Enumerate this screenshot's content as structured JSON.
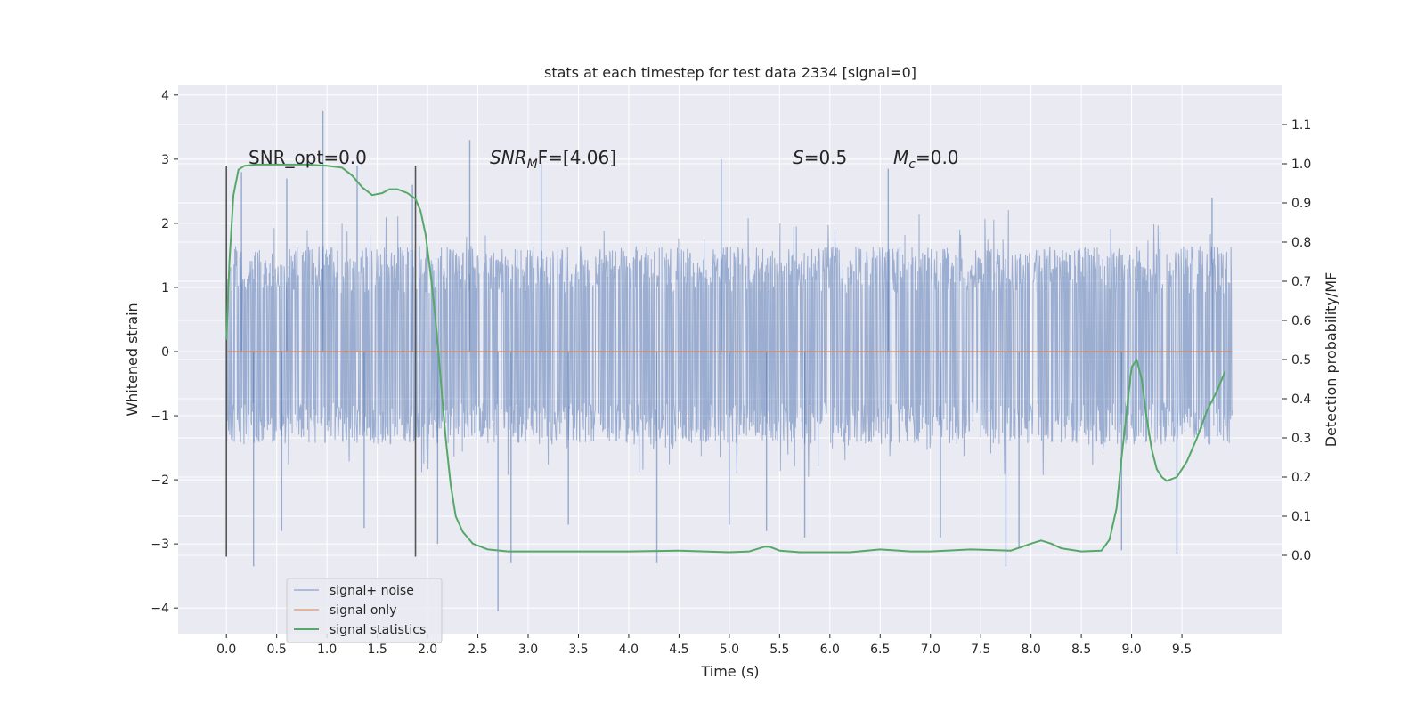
{
  "chart_data": {
    "type": "line",
    "title": "stats at each timestep for test data 2334 [signal=0]",
    "xlabel": "Time (s)",
    "ylabel": "Whitened strain",
    "y2label": "Detection probability/MF",
    "xlim": [
      -0.48,
      10.5
    ],
    "ylim": [
      -4.4,
      4.15
    ],
    "y2lim": [
      -0.2,
      1.2
    ],
    "xticks": [
      0.0,
      0.5,
      1.0,
      1.5,
      2.0,
      2.5,
      3.0,
      3.5,
      4.0,
      4.5,
      5.0,
      5.5,
      6.0,
      6.5,
      7.0,
      7.5,
      8.0,
      8.5,
      9.0,
      9.5
    ],
    "xtick_labels": [
      "0.0",
      "0.5",
      "1.0",
      "1.5",
      "2.0",
      "2.5",
      "3.0",
      "3.5",
      "4.0",
      "4.5",
      "5.0",
      "5.5",
      "6.0",
      "6.5",
      "7.0",
      "7.5",
      "8.0",
      "8.5",
      "9.0",
      "9.5"
    ],
    "yticks": [
      -4,
      -3,
      -2,
      -1,
      0,
      1,
      2,
      3,
      4
    ],
    "ytick_labels": [
      "−4",
      "−3",
      "−2",
      "−1",
      "0",
      "1",
      "2",
      "3",
      "4"
    ],
    "y2ticks": [
      0.0,
      0.1,
      0.2,
      0.3,
      0.4,
      0.5,
      0.6,
      0.7,
      0.8,
      0.9,
      1.0,
      1.1
    ],
    "y2tick_labels": [
      "0.0",
      "0.1",
      "0.2",
      "0.3",
      "0.4",
      "0.5",
      "0.6",
      "0.7",
      "0.8",
      "0.9",
      "1.0",
      "1.1"
    ],
    "grid": true,
    "legend_position": "lower-left",
    "series": [
      {
        "name": "signal+ noise",
        "color": "#4c72b0",
        "axis": "left",
        "style": "dense noise trace",
        "x_range": [
          0.0,
          10.0
        ],
        "typical_envelope": [
          -1.45,
          1.65
        ],
        "peaks": [
          {
            "x": 0.15,
            "y": 2.8
          },
          {
            "x": 0.27,
            "y": -3.35
          },
          {
            "x": 0.55,
            "y": -2.8
          },
          {
            "x": 0.6,
            "y": 2.7
          },
          {
            "x": 0.96,
            "y": 3.75
          },
          {
            "x": 1.3,
            "y": 2.9
          },
          {
            "x": 1.37,
            "y": -2.75
          },
          {
            "x": 1.85,
            "y": 2.6
          },
          {
            "x": 2.1,
            "y": -3.0
          },
          {
            "x": 2.42,
            "y": 3.3
          },
          {
            "x": 2.7,
            "y": -4.05
          },
          {
            "x": 2.83,
            "y": -3.3
          },
          {
            "x": 3.13,
            "y": 2.95
          },
          {
            "x": 3.4,
            "y": -2.7
          },
          {
            "x": 4.28,
            "y": -3.3
          },
          {
            "x": 4.92,
            "y": 3.0
          },
          {
            "x": 5.0,
            "y": -2.7
          },
          {
            "x": 5.37,
            "y": -2.8
          },
          {
            "x": 5.75,
            "y": -2.9
          },
          {
            "x": 6.58,
            "y": 2.85
          },
          {
            "x": 7.1,
            "y": -2.9
          },
          {
            "x": 7.75,
            "y": -3.35
          },
          {
            "x": 7.88,
            "y": -3.05
          },
          {
            "x": 8.9,
            "y": -3.1
          },
          {
            "x": 9.45,
            "y": -3.15
          },
          {
            "x": 9.8,
            "y": 2.4
          }
        ]
      },
      {
        "name": "signal only",
        "color": "#dd8452",
        "axis": "left",
        "x": [
          0.0,
          10.0
        ],
        "y": [
          0.0,
          0.0
        ]
      },
      {
        "name": "signal statistics",
        "color": "#55a868",
        "axis": "right",
        "x": [
          0.0,
          0.03,
          0.07,
          0.12,
          0.18,
          0.3,
          0.5,
          0.8,
          1.0,
          1.15,
          1.25,
          1.35,
          1.45,
          1.55,
          1.62,
          1.7,
          1.8,
          1.88,
          1.93,
          1.98,
          2.03,
          2.08,
          2.13,
          2.18,
          2.23,
          2.28,
          2.35,
          2.45,
          2.6,
          2.8,
          3.0,
          3.5,
          4.0,
          4.5,
          5.0,
          5.2,
          5.35,
          5.4,
          5.5,
          5.7,
          6.0,
          6.2,
          6.5,
          6.8,
          7.0,
          7.4,
          7.8,
          8.0,
          8.1,
          8.2,
          8.3,
          8.5,
          8.7,
          8.78,
          8.85,
          8.9,
          9.0,
          9.05,
          9.1,
          9.15,
          9.2,
          9.25,
          9.3,
          9.35,
          9.45,
          9.55,
          9.65,
          9.75,
          9.85,
          9.93
        ],
        "y": [
          0.55,
          0.75,
          0.92,
          0.985,
          0.995,
          0.998,
          0.998,
          0.998,
          0.995,
          0.99,
          0.97,
          0.94,
          0.92,
          0.925,
          0.935,
          0.935,
          0.925,
          0.91,
          0.88,
          0.82,
          0.72,
          0.6,
          0.45,
          0.3,
          0.18,
          0.1,
          0.06,
          0.03,
          0.015,
          0.01,
          0.01,
          0.01,
          0.01,
          0.012,
          0.008,
          0.01,
          0.022,
          0.022,
          0.012,
          0.008,
          0.008,
          0.008,
          0.015,
          0.01,
          0.01,
          0.015,
          0.012,
          0.03,
          0.038,
          0.03,
          0.018,
          0.01,
          0.012,
          0.04,
          0.12,
          0.25,
          0.48,
          0.5,
          0.45,
          0.35,
          0.27,
          0.22,
          0.2,
          0.19,
          0.2,
          0.24,
          0.3,
          0.37,
          0.42,
          0.47
        ]
      }
    ],
    "vertical_markers": {
      "color": "#555555",
      "x": [
        0.0,
        1.88
      ],
      "ymin": -3.2,
      "ymax": 2.9
    },
    "annotations": [
      {
        "prefix": "SNR_opt=0.0",
        "sub": "",
        "suffix": ""
      },
      {
        "prefix": "SNR",
        "sub": "M",
        "suffix": "F=[4.06]"
      },
      {
        "prefix": "S",
        "sub": "",
        "suffix": "=0.5"
      },
      {
        "prefix": "M",
        "sub": "c",
        "suffix": "=0.0"
      }
    ]
  }
}
